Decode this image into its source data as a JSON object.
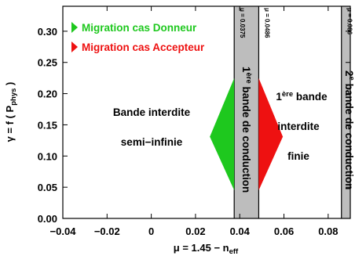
{
  "chart_data": {
    "type": "area",
    "x_label_main": "μ = 1.45 − n",
    "x_label_sub": "eff",
    "y_label_main": "γ = f ( P",
    "y_label_sub": "phys",
    "y_label_end": " )",
    "xlim": [
      -0.04,
      0.09
    ],
    "ylim": [
      0,
      0.34
    ],
    "x_ticks": [
      -0.04,
      -0.02,
      0,
      0.02,
      0.04,
      0.06,
      0.08
    ],
    "x_tick_labels": [
      "−0.04",
      "−0.02",
      "0",
      "0.02",
      "0.04",
      "0.06",
      "0.08"
    ],
    "y_ticks": [
      0,
      0.05,
      0.1,
      0.15,
      0.2,
      0.25,
      0.3
    ],
    "y_tick_labels": [
      "0.00",
      "0.05",
      "0.10",
      "0.15",
      "0.20",
      "0.25",
      "0.30"
    ],
    "grid": false,
    "legend": {
      "placement": "top-left",
      "items": [
        {
          "label": "Migration cas Donneur",
          "color": "#1ec81e",
          "marker": "triangle-right"
        },
        {
          "label": "Migration cas Accepteur",
          "color": "#ee1111",
          "marker": "triangle-right"
        }
      ]
    },
    "bands": [
      {
        "x_start": 0.0375,
        "x_end": 0.0486,
        "color": "#bdbdbd",
        "label_sup": "ère",
        "label_prefix": "1",
        "label_rest": " bande de conduction",
        "left_marker": "μ = 0.0375",
        "right_marker": "μ = 0.0486"
      },
      {
        "x_start": 0.086,
        "x_end": 0.095,
        "color": "#bdbdbd",
        "label_sup": "e",
        "label_prefix": "2",
        "label_rest": " bande de conduction",
        "left_marker": "μ = 0.086"
      }
    ],
    "regions": [
      {
        "lines": [
          "Bande interdite",
          "semi−infinie"
        ]
      },
      {
        "lines_sup": "ère",
        "lines_prefix": "1",
        "lines_rest": " bande",
        "lines": [
          "interdite",
          "finie"
        ]
      }
    ],
    "series": [
      {
        "name": "Migration cas Donneur",
        "color": "#1ec81e",
        "polygon": [
          [
            0.0375,
            0.225
          ],
          [
            0.0375,
            0.045
          ],
          [
            0.0265,
            0.131
          ]
        ]
      },
      {
        "name": "Migration cas Accepteur",
        "color": "#ee1111",
        "polygon": [
          [
            0.0486,
            0.225
          ],
          [
            0.0486,
            0.045
          ],
          [
            0.0595,
            0.131
          ]
        ]
      }
    ]
  }
}
